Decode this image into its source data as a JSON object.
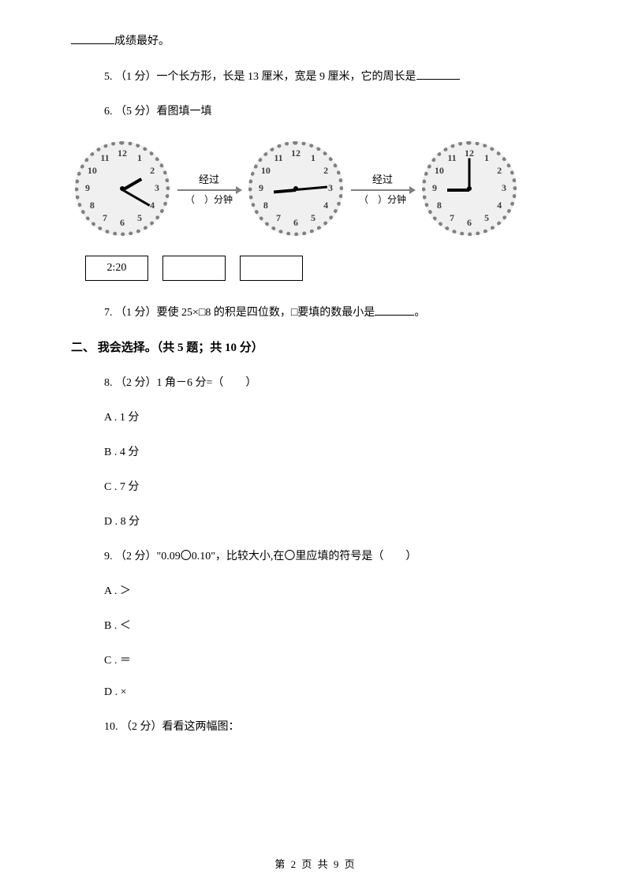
{
  "q4_tail": "成绩最好。",
  "q5": "5. （1 分）一个长方形，长是 13 厘米，宽是 9 厘米，它的周长是",
  "q6": "6. （5 分）看图填一填",
  "q7_pre": "7. （1 分）要使 25×□8 的积是四位数，□要填的数最小是",
  "q7_post": "。",
  "section2": "二、 我会选择。（共 5 题；共 10 分）",
  "q8": "8. （2 分）1 角－6 分=（　　）",
  "q8a": "A . 1 分",
  "q8b": "B . 4 分",
  "q8c": "C . 7 分",
  "q8d": "D . 8 分",
  "q9": "9. （2 分）\"0.09〇0.10\"，比较大小,在〇里应填的符号是（　　）",
  "q9a": "A . ＞",
  "q9b": "B . ＜",
  "q9c": "C . ＝",
  "q9d": "D . ×",
  "q10": "10. （2 分）看看这两幅图：",
  "footer": "第 2 页 共 9 页",
  "clock_diagram": {
    "arrow_label": "经过",
    "arrow_sub_pre": "（",
    "arrow_sub_post": "）分钟",
    "time_box1": "2:20",
    "clocks": [
      {
        "hour_angle": -30,
        "minute_angle": 30
      },
      {
        "hour_angle": 175,
        "minute_angle": -5
      },
      {
        "hour_angle": 180,
        "minute_angle": -90
      }
    ],
    "numbers": [
      "12",
      "1",
      "2",
      "3",
      "4",
      "5",
      "6",
      "7",
      "8",
      "9",
      "10",
      "11"
    ],
    "colors": {
      "face_bg": "#f0f0f0",
      "border": "#808080",
      "number": "#404040",
      "hand": "#000000"
    }
  }
}
